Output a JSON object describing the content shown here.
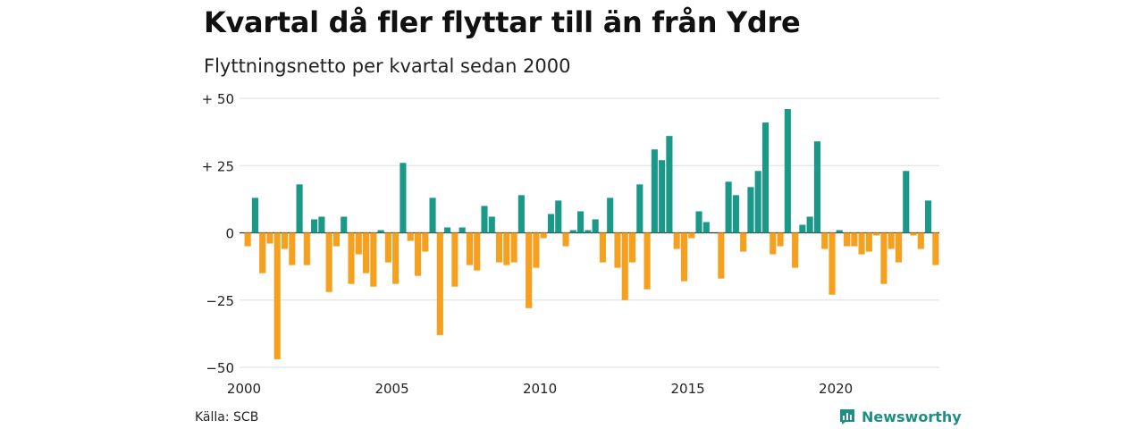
{
  "title": "Kvartal då fler flyttar till än från Ydre",
  "subtitle": "Flyttningsnetto per kvartal sedan 2000",
  "source": "Källa: SCB",
  "brand": {
    "name": "Newsworthy",
    "icon": "newsworthy-logo-icon"
  },
  "colors": {
    "positive": "#1a9988",
    "negative": "#f5a01e",
    "grid": "#dddddd",
    "baseline": "#333333"
  },
  "chart_data": {
    "type": "bar",
    "title": "Kvartal då fler flyttar till än från Ydre",
    "subtitle": "Flyttningsnetto per kvartal sedan 2000",
    "xlabel": "",
    "ylabel": "",
    "x_start": 2000.0,
    "x_step": 0.25,
    "xlim": [
      2000,
      2023.5
    ],
    "ylim": [
      -50,
      50
    ],
    "x_ticks": [
      2000,
      2005,
      2010,
      2015,
      2020
    ],
    "x_tick_labels": [
      "2000",
      "2005",
      "2010",
      "2015",
      "2020"
    ],
    "y_ticks": [
      50,
      25,
      0,
      -25,
      -50
    ],
    "y_tick_labels": [
      "+ 50",
      "+ 25",
      "0",
      "−25",
      "−50"
    ],
    "grid": true,
    "values": [
      -5,
      13,
      -15,
      -4,
      -47,
      -6,
      -12,
      18,
      -12,
      5,
      6,
      -22,
      -5,
      6,
      -19,
      -8,
      -15,
      -20,
      1,
      -11,
      -19,
      26,
      -3,
      -16,
      -7,
      13,
      -38,
      2,
      -20,
      2,
      -12,
      -14,
      10,
      6,
      -11,
      -12,
      -11,
      14,
      -28,
      -13,
      -2,
      7,
      12,
      -5,
      1,
      8,
      1,
      5,
      -11,
      13,
      -13,
      -25,
      -11,
      18,
      -21,
      31,
      27,
      36,
      -6,
      -18,
      -2,
      8,
      4,
      0,
      -17,
      19,
      14,
      -7,
      17,
      23,
      41,
      -8,
      -5,
      46,
      -13,
      3,
      6,
      34,
      -6,
      -23,
      1,
      -5,
      -5,
      -8,
      -7,
      -1,
      -19,
      -6,
      -11,
      23,
      -1,
      -6,
      12,
      -12
    ]
  }
}
